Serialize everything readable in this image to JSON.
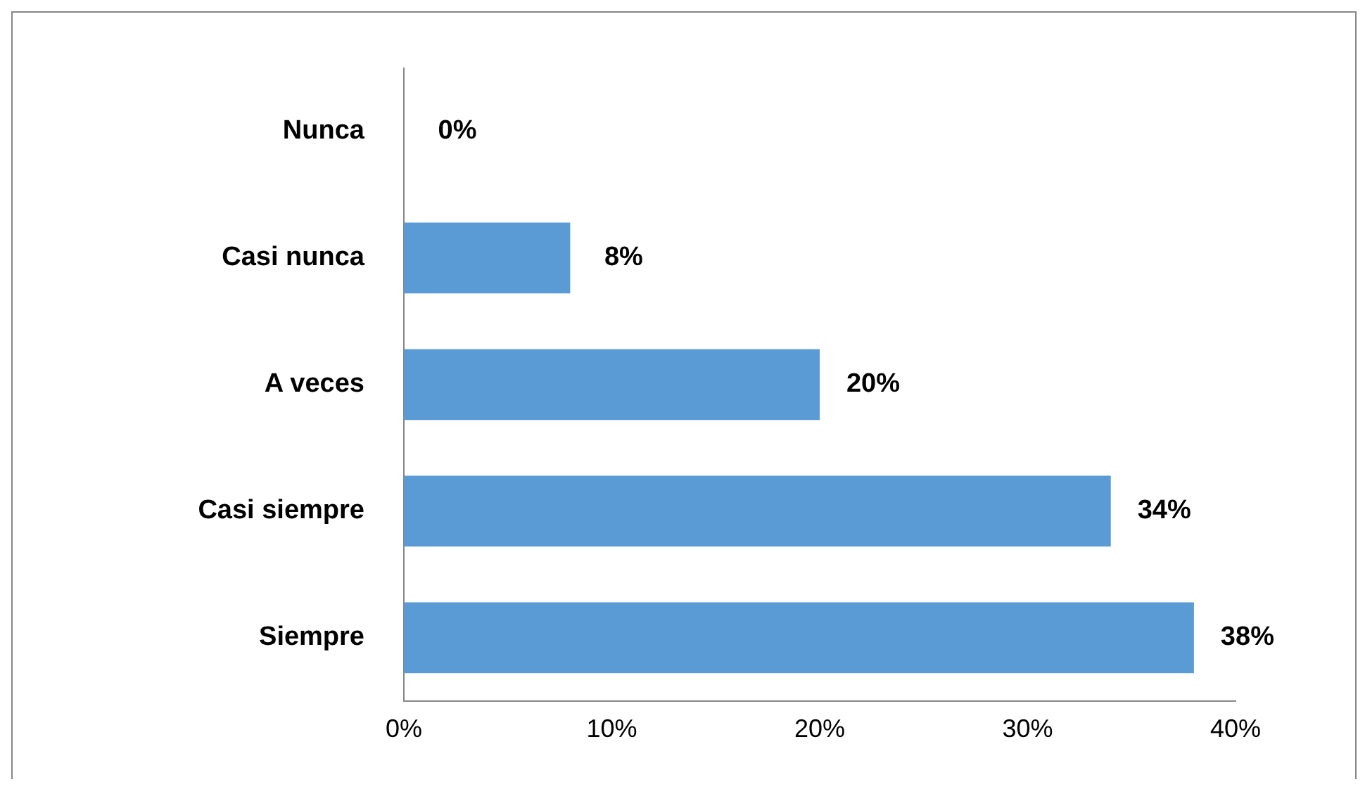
{
  "chart_data": {
    "type": "bar",
    "orientation": "horizontal",
    "categories": [
      "Nunca",
      "Casi nunca",
      "A veces",
      "Casi siempre",
      "Siempre"
    ],
    "values": [
      0,
      8,
      20,
      34,
      38
    ],
    "color": "#5b9bd5",
    "value_labels": [
      "0%",
      "8%",
      "20%",
      "34%",
      "38%"
    ],
    "xlim": [
      0,
      40
    ],
    "xticks": [
      {
        "value": 0,
        "label": "0%"
      },
      {
        "value": 10,
        "label": "10%"
      },
      {
        "value": 20,
        "label": "20%"
      },
      {
        "value": 30,
        "label": "30%"
      },
      {
        "value": 40,
        "label": "40%"
      }
    ],
    "grid": false,
    "legend": false
  }
}
